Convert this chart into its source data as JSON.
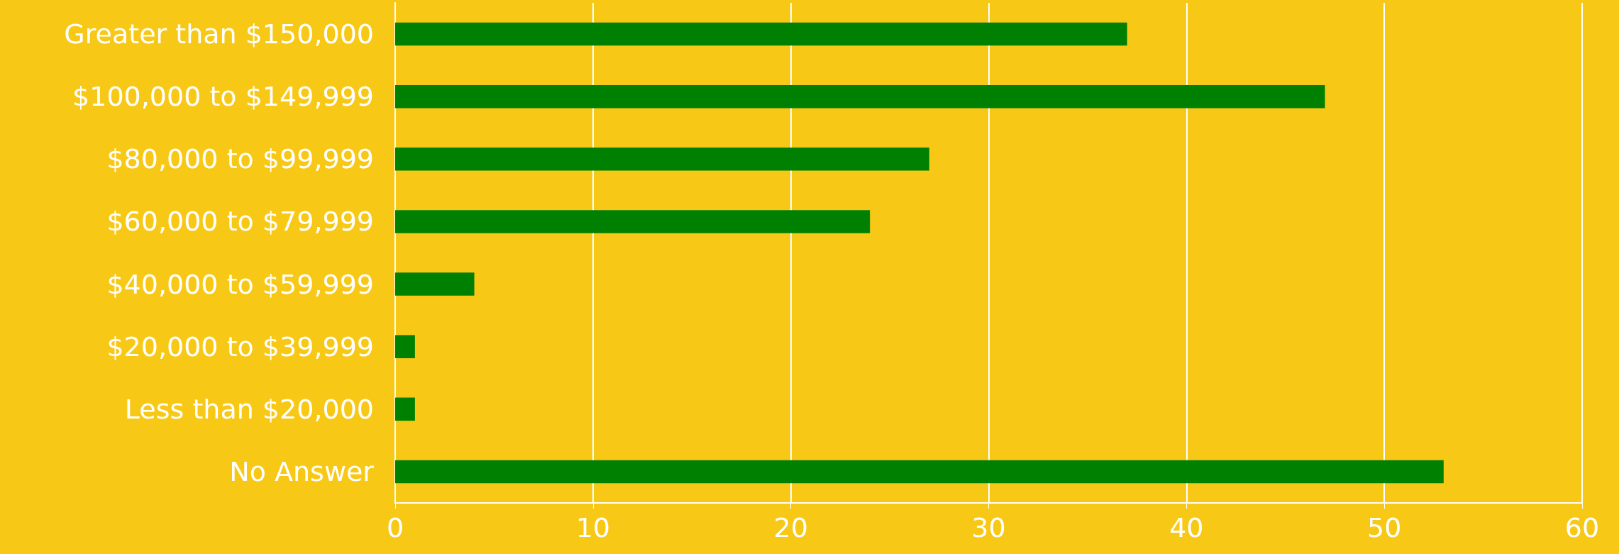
{
  "chart_data": {
    "type": "bar",
    "orientation": "horizontal",
    "categories": [
      "Greater than $150,000",
      "$100,000 to $149,999",
      "$80,000 to $99,999",
      "$60,000 to $79,999",
      "$40,000 to $59,999",
      "$20,000 to $39,999",
      "Less than $20,000",
      "No Answer"
    ],
    "values": [
      37,
      47,
      27,
      24,
      4,
      1,
      1,
      53
    ],
    "color": "#008000",
    "xlim": [
      0,
      60
    ],
    "xticks": [
      0,
      10,
      20,
      30,
      40,
      50,
      60
    ],
    "grid": "x"
  }
}
